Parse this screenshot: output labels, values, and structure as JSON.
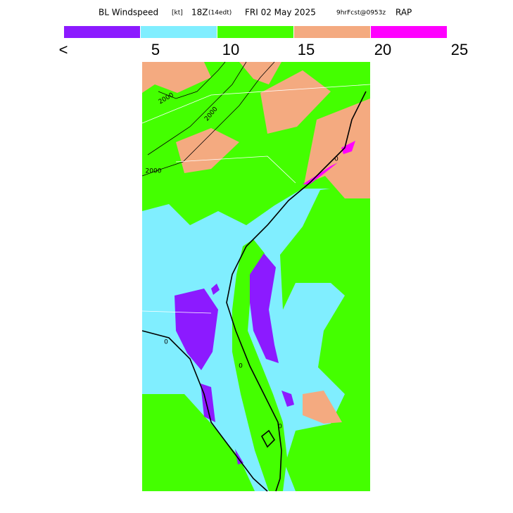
{
  "title": {
    "field": "BL Windspeed",
    "units": "[kt]",
    "valid": "18Z",
    "local": "(14edt)",
    "date": "FRI 02 May 2025",
    "forecast": "9hrFcst@0953z",
    "model": "RAP"
  },
  "legend": {
    "colors": [
      "#8c1aff",
      "#80eeff",
      "#44ff00",
      "#f4aa80",
      "#ff00ff"
    ],
    "labels": [
      "<",
      "5",
      "10",
      "15",
      "20",
      "25"
    ]
  },
  "contour_labels": [
    "2000",
    "2000",
    "2000",
    "0",
    "0",
    "0",
    "0"
  ]
}
